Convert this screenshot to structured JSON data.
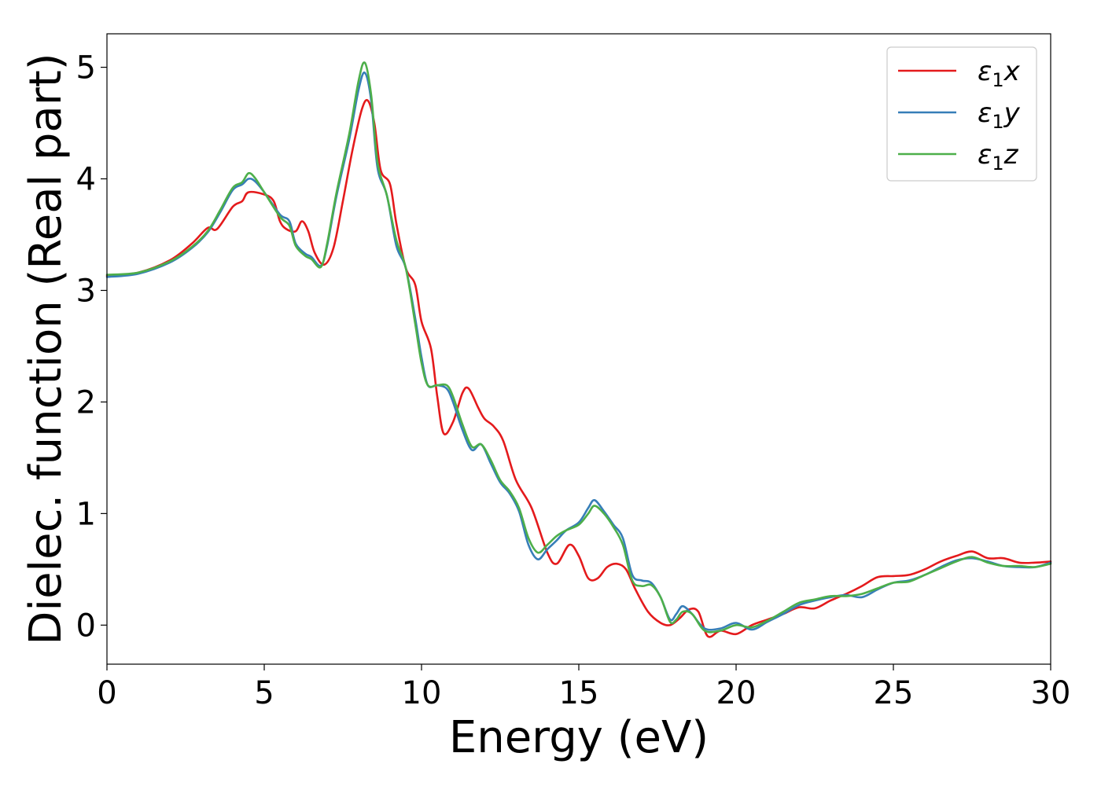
{
  "chart_data": {
    "type": "line",
    "xlabel": "Energy (eV)",
    "ylabel": "Dielec. function (Real part)",
    "xlim": [
      0,
      30
    ],
    "ylim": [
      -0.35,
      5.3
    ],
    "x_ticks": [
      0,
      5,
      10,
      15,
      20,
      25,
      30
    ],
    "y_ticks": [
      0,
      1,
      2,
      3,
      4,
      5
    ],
    "grid": false,
    "legend_position": "top-right",
    "series": [
      {
        "name": "ε₁x",
        "legend_base": "ε",
        "legend_sub": "1",
        "legend_suffix": "x",
        "color": "#e41a1c",
        "points": [
          [
            0,
            3.13
          ],
          [
            1,
            3.16
          ],
          [
            2,
            3.27
          ],
          [
            2.7,
            3.42
          ],
          [
            3.2,
            3.56
          ],
          [
            3.5,
            3.55
          ],
          [
            4,
            3.75
          ],
          [
            4.3,
            3.8
          ],
          [
            4.5,
            3.88
          ],
          [
            5,
            3.86
          ],
          [
            5.3,
            3.8
          ],
          [
            5.5,
            3.62
          ],
          [
            5.7,
            3.55
          ],
          [
            6,
            3.53
          ],
          [
            6.2,
            3.62
          ],
          [
            6.4,
            3.53
          ],
          [
            6.6,
            3.34
          ],
          [
            6.9,
            3.23
          ],
          [
            7.2,
            3.38
          ],
          [
            7.5,
            3.8
          ],
          [
            7.8,
            4.25
          ],
          [
            8.1,
            4.62
          ],
          [
            8.3,
            4.7
          ],
          [
            8.5,
            4.5
          ],
          [
            8.7,
            4.08
          ],
          [
            9,
            3.95
          ],
          [
            9.2,
            3.6
          ],
          [
            9.5,
            3.2
          ],
          [
            9.8,
            3.05
          ],
          [
            10,
            2.72
          ],
          [
            10.3,
            2.48
          ],
          [
            10.5,
            2.05
          ],
          [
            10.7,
            1.72
          ],
          [
            11,
            1.82
          ],
          [
            11.3,
            2.08
          ],
          [
            11.5,
            2.12
          ],
          [
            11.8,
            1.95
          ],
          [
            12,
            1.85
          ],
          [
            12.3,
            1.78
          ],
          [
            12.6,
            1.65
          ],
          [
            13,
            1.3
          ],
          [
            13.5,
            1.05
          ],
          [
            14,
            0.65
          ],
          [
            14.3,
            0.55
          ],
          [
            14.7,
            0.72
          ],
          [
            15,
            0.62
          ],
          [
            15.3,
            0.42
          ],
          [
            15.6,
            0.42
          ],
          [
            15.9,
            0.52
          ],
          [
            16.2,
            0.55
          ],
          [
            16.5,
            0.5
          ],
          [
            16.8,
            0.32
          ],
          [
            17.2,
            0.12
          ],
          [
            17.6,
            0.02
          ],
          [
            17.9,
            0.0
          ],
          [
            18.2,
            0.06
          ],
          [
            18.5,
            0.14
          ],
          [
            18.8,
            0.12
          ],
          [
            19.1,
            -0.1
          ],
          [
            19.5,
            -0.05
          ],
          [
            20,
            -0.08
          ],
          [
            20.5,
            0.0
          ],
          [
            21,
            0.05
          ],
          [
            21.5,
            0.1
          ],
          [
            22,
            0.16
          ],
          [
            22.5,
            0.15
          ],
          [
            23,
            0.22
          ],
          [
            23.5,
            0.28
          ],
          [
            24,
            0.35
          ],
          [
            24.5,
            0.43
          ],
          [
            25,
            0.44
          ],
          [
            25.5,
            0.45
          ],
          [
            26,
            0.5
          ],
          [
            26.5,
            0.57
          ],
          [
            27,
            0.62
          ],
          [
            27.5,
            0.66
          ],
          [
            28,
            0.6
          ],
          [
            28.5,
            0.6
          ],
          [
            29,
            0.56
          ],
          [
            29.5,
            0.56
          ],
          [
            30,
            0.57
          ]
        ]
      },
      {
        "name": "ε₁y",
        "legend_base": "ε",
        "legend_sub": "1",
        "legend_suffix": "y",
        "color": "#377eb8",
        "points": [
          [
            0,
            3.12
          ],
          [
            1,
            3.15
          ],
          [
            2,
            3.25
          ],
          [
            2.7,
            3.38
          ],
          [
            3.2,
            3.52
          ],
          [
            3.6,
            3.7
          ],
          [
            4,
            3.9
          ],
          [
            4.3,
            3.95
          ],
          [
            4.5,
            4.0
          ],
          [
            4.7,
            3.98
          ],
          [
            5,
            3.88
          ],
          [
            5.5,
            3.68
          ],
          [
            5.8,
            3.62
          ],
          [
            6,
            3.42
          ],
          [
            6.3,
            3.33
          ],
          [
            6.5,
            3.3
          ],
          [
            6.8,
            3.22
          ],
          [
            7,
            3.4
          ],
          [
            7.3,
            3.85
          ],
          [
            7.7,
            4.35
          ],
          [
            8,
            4.8
          ],
          [
            8.2,
            4.95
          ],
          [
            8.4,
            4.7
          ],
          [
            8.6,
            4.1
          ],
          [
            8.9,
            3.85
          ],
          [
            9.2,
            3.4
          ],
          [
            9.5,
            3.2
          ],
          [
            9.8,
            2.75
          ],
          [
            10,
            2.4
          ],
          [
            10.2,
            2.15
          ],
          [
            10.5,
            2.15
          ],
          [
            10.8,
            2.12
          ],
          [
            11,
            2.0
          ],
          [
            11.3,
            1.75
          ],
          [
            11.6,
            1.57
          ],
          [
            11.9,
            1.62
          ],
          [
            12.2,
            1.45
          ],
          [
            12.5,
            1.28
          ],
          [
            12.8,
            1.18
          ],
          [
            13.1,
            1.02
          ],
          [
            13.4,
            0.72
          ],
          [
            13.7,
            0.59
          ],
          [
            14,
            0.68
          ],
          [
            14.3,
            0.76
          ],
          [
            14.6,
            0.85
          ],
          [
            15,
            0.92
          ],
          [
            15.3,
            1.05
          ],
          [
            15.5,
            1.12
          ],
          [
            15.8,
            1.02
          ],
          [
            16.1,
            0.9
          ],
          [
            16.4,
            0.78
          ],
          [
            16.7,
            0.45
          ],
          [
            17,
            0.4
          ],
          [
            17.3,
            0.38
          ],
          [
            17.6,
            0.25
          ],
          [
            17.9,
            0.05
          ],
          [
            18.1,
            0.1
          ],
          [
            18.3,
            0.17
          ],
          [
            18.6,
            0.1
          ],
          [
            19,
            -0.03
          ],
          [
            19.5,
            -0.03
          ],
          [
            20,
            0.02
          ],
          [
            20.5,
            -0.04
          ],
          [
            21,
            0.03
          ],
          [
            21.5,
            0.1
          ],
          [
            22,
            0.18
          ],
          [
            22.5,
            0.22
          ],
          [
            23,
            0.25
          ],
          [
            23.5,
            0.27
          ],
          [
            24,
            0.25
          ],
          [
            24.5,
            0.32
          ],
          [
            25,
            0.38
          ],
          [
            25.5,
            0.4
          ],
          [
            26,
            0.45
          ],
          [
            26.5,
            0.52
          ],
          [
            27,
            0.58
          ],
          [
            27.5,
            0.6
          ],
          [
            28,
            0.57
          ],
          [
            28.5,
            0.53
          ],
          [
            29,
            0.52
          ],
          [
            29.5,
            0.52
          ],
          [
            30,
            0.56
          ]
        ]
      },
      {
        "name": "ε₁z",
        "legend_base": "ε",
        "legend_sub": "1",
        "legend_suffix": "z",
        "color": "#4daf4a",
        "points": [
          [
            0,
            3.14
          ],
          [
            1,
            3.16
          ],
          [
            2,
            3.26
          ],
          [
            2.7,
            3.39
          ],
          [
            3.2,
            3.53
          ],
          [
            3.6,
            3.72
          ],
          [
            4,
            3.92
          ],
          [
            4.3,
            3.97
          ],
          [
            4.5,
            4.05
          ],
          [
            4.7,
            4.01
          ],
          [
            5,
            3.88
          ],
          [
            5.5,
            3.66
          ],
          [
            5.8,
            3.58
          ],
          [
            6,
            3.4
          ],
          [
            6.3,
            3.31
          ],
          [
            6.5,
            3.28
          ],
          [
            6.8,
            3.21
          ],
          [
            7,
            3.42
          ],
          [
            7.3,
            3.88
          ],
          [
            7.7,
            4.4
          ],
          [
            8,
            4.88
          ],
          [
            8.2,
            5.04
          ],
          [
            8.4,
            4.75
          ],
          [
            8.6,
            4.15
          ],
          [
            8.9,
            3.85
          ],
          [
            9.2,
            3.45
          ],
          [
            9.5,
            3.2
          ],
          [
            9.8,
            2.7
          ],
          [
            10,
            2.35
          ],
          [
            10.2,
            2.15
          ],
          [
            10.5,
            2.15
          ],
          [
            10.8,
            2.15
          ],
          [
            11,
            2.05
          ],
          [
            11.3,
            1.8
          ],
          [
            11.6,
            1.6
          ],
          [
            11.9,
            1.62
          ],
          [
            12.2,
            1.48
          ],
          [
            12.5,
            1.3
          ],
          [
            12.8,
            1.2
          ],
          [
            13.1,
            1.05
          ],
          [
            13.4,
            0.78
          ],
          [
            13.7,
            0.65
          ],
          [
            14,
            0.72
          ],
          [
            14.3,
            0.8
          ],
          [
            14.6,
            0.85
          ],
          [
            15,
            0.9
          ],
          [
            15.3,
            1.0
          ],
          [
            15.5,
            1.07
          ],
          [
            15.8,
            1.0
          ],
          [
            16.1,
            0.88
          ],
          [
            16.4,
            0.72
          ],
          [
            16.7,
            0.4
          ],
          [
            17,
            0.35
          ],
          [
            17.3,
            0.36
          ],
          [
            17.6,
            0.25
          ],
          [
            17.9,
            0.03
          ],
          [
            18.1,
            0.05
          ],
          [
            18.3,
            0.12
          ],
          [
            18.6,
            0.1
          ],
          [
            19,
            -0.05
          ],
          [
            19.5,
            -0.05
          ],
          [
            20,
            0.0
          ],
          [
            20.5,
            -0.02
          ],
          [
            21,
            0.04
          ],
          [
            21.5,
            0.12
          ],
          [
            22,
            0.2
          ],
          [
            22.5,
            0.23
          ],
          [
            23,
            0.26
          ],
          [
            23.5,
            0.26
          ],
          [
            24,
            0.28
          ],
          [
            24.5,
            0.33
          ],
          [
            25,
            0.38
          ],
          [
            25.5,
            0.39
          ],
          [
            26,
            0.45
          ],
          [
            26.5,
            0.51
          ],
          [
            27,
            0.57
          ],
          [
            27.5,
            0.61
          ],
          [
            28,
            0.56
          ],
          [
            28.5,
            0.53
          ],
          [
            29,
            0.53
          ],
          [
            29.5,
            0.52
          ],
          [
            30,
            0.55
          ]
        ]
      }
    ]
  }
}
